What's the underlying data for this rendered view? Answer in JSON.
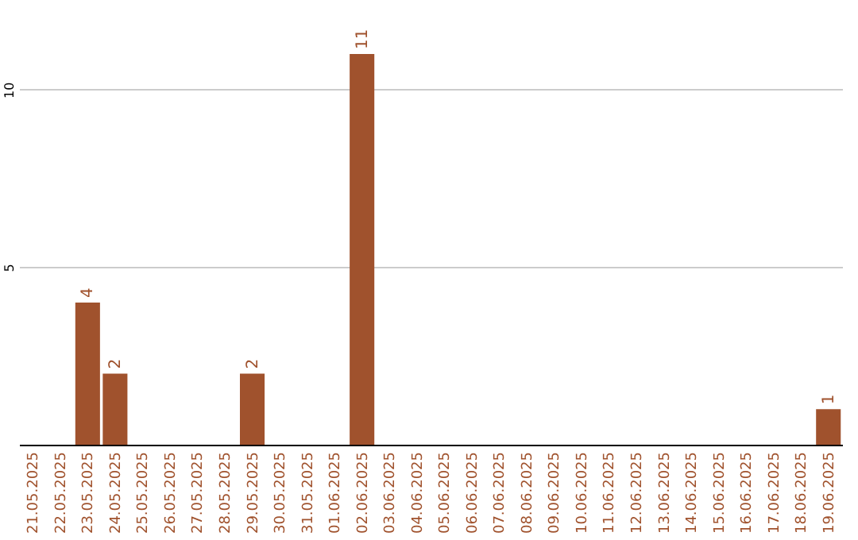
{
  "chart_data": {
    "type": "bar",
    "categories": [
      "21.05.2025",
      "22.05.2025",
      "23.05.2025",
      "24.05.2025",
      "25.05.2025",
      "26.05.2025",
      "27.05.2025",
      "28.05.2025",
      "29.05.2025",
      "30.05.2025",
      "31.05.2025",
      "01.06.2025",
      "02.06.2025",
      "03.06.2025",
      "04.06.2025",
      "05.06.2025",
      "06.06.2025",
      "07.06.2025",
      "08.06.2025",
      "09.06.2025",
      "10.06.2025",
      "11.06.2025",
      "12.06.2025",
      "13.06.2025",
      "14.06.2025",
      "15.06.2025",
      "16.06.2025",
      "17.06.2025",
      "18.06.2025",
      "19.06.2025"
    ],
    "values": [
      0,
      0,
      4,
      2,
      0,
      0,
      0,
      0,
      2,
      0,
      0,
      0,
      11,
      0,
      0,
      0,
      0,
      0,
      0,
      0,
      0,
      0,
      0,
      0,
      0,
      0,
      0,
      0,
      0,
      1
    ],
    "value_labels": [
      null,
      null,
      "4",
      "2",
      null,
      null,
      null,
      null,
      "2",
      null,
      null,
      null,
      "11",
      null,
      null,
      null,
      null,
      null,
      null,
      null,
      null,
      null,
      null,
      null,
      null,
      null,
      null,
      null,
      null,
      "1"
    ],
    "color": "#a0522d",
    "ylim": [
      0,
      11
    ],
    "yticks": [
      5,
      10
    ],
    "grid": "y"
  }
}
